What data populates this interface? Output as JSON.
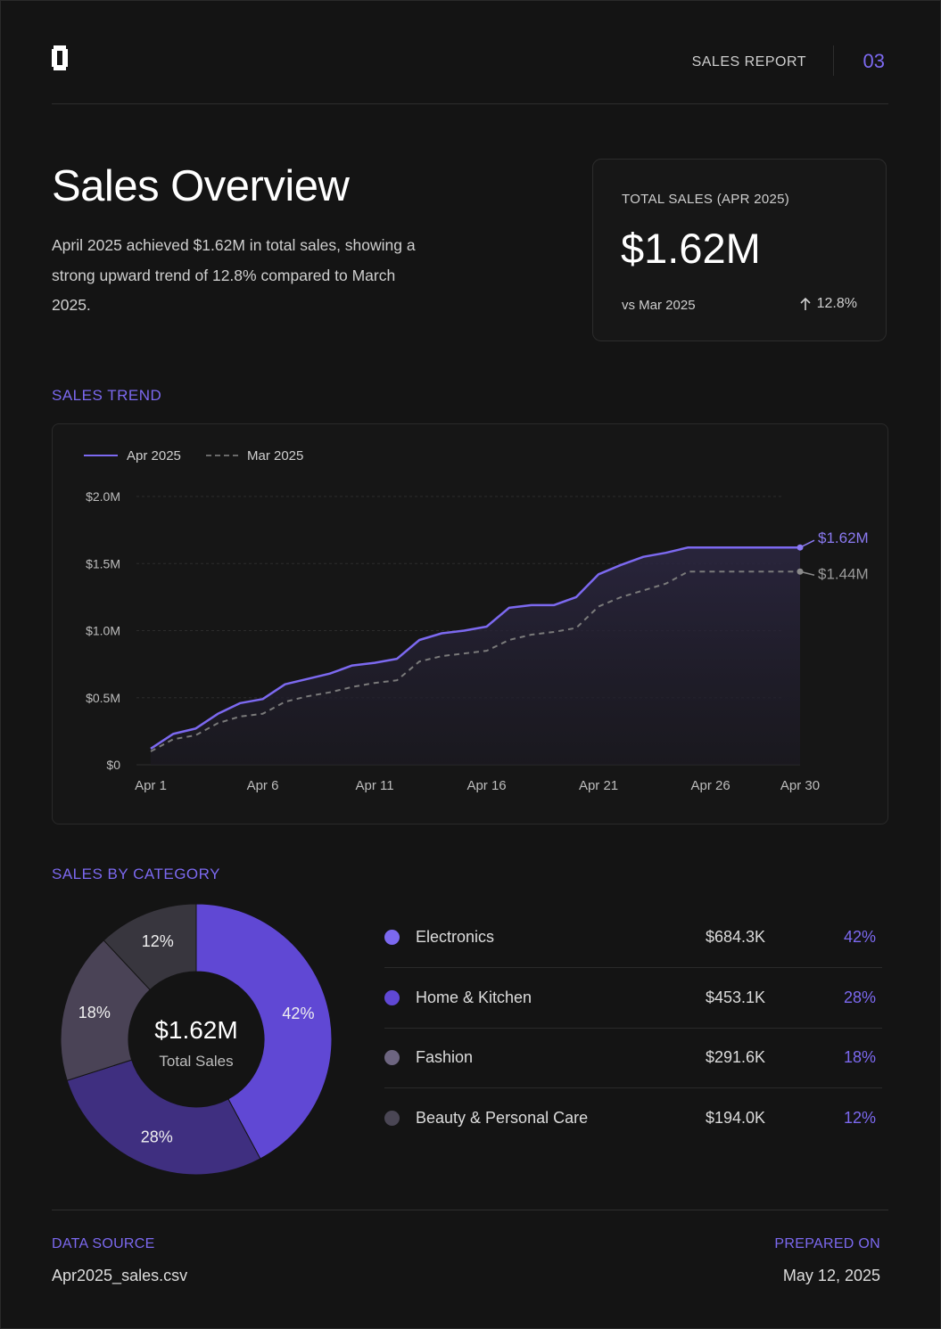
{
  "header": {
    "report_label": "SALES REPORT",
    "page_number": "03"
  },
  "overview": {
    "title": "Sales Overview",
    "description": "April 2025 achieved $1.62M in total sales, showing a strong upward trend of 12.8% compared to March 2025."
  },
  "kpi": {
    "label": "TOTAL SALES (APR 2025)",
    "value": "$1.62M",
    "comparison": "vs Mar 2025",
    "change": "12.8%",
    "change_icon": "arrow-up-icon"
  },
  "sections": {
    "trend_title": "SALES TREND",
    "category_title": "SALES BY CATEGORY"
  },
  "colors": {
    "accent": "#7c69f0",
    "background": "#141414",
    "apr_line": "#7c69f0",
    "mar_line": "#7a7a7a"
  },
  "chart_data": [
    {
      "type": "line",
      "x_ticks": [
        "Apr 1",
        "Apr 6",
        "Apr 11",
        "Apr 16",
        "Apr 21",
        "Apr 26",
        "Apr 30"
      ],
      "x_days": [
        1,
        6,
        11,
        16,
        21,
        26,
        30
      ],
      "x_range": [
        1,
        30
      ],
      "y_ticks": [
        "$0",
        "$0.5M",
        "$1.0M",
        "$1.5M",
        "$2.0M"
      ],
      "y_tick_values": [
        0,
        0.5,
        1.0,
        1.5,
        2.0
      ],
      "ylim": [
        0,
        2.0
      ],
      "y_unit": "$M",
      "grid": true,
      "legend_position": "top-left",
      "series": [
        {
          "name": "Apr 2025",
          "style": "solid",
          "color": "#7c69f0",
          "end_label": "$1.62M",
          "x": [
            1,
            2,
            3,
            4,
            5,
            6,
            7,
            8,
            9,
            10,
            11,
            12,
            13,
            14,
            15,
            16,
            17,
            18,
            19,
            20,
            21,
            22,
            23,
            24,
            25,
            26,
            27,
            28,
            29,
            30
          ],
          "values": [
            0.12,
            0.23,
            0.27,
            0.38,
            0.46,
            0.49,
            0.6,
            0.64,
            0.68,
            0.74,
            0.76,
            0.79,
            0.93,
            0.98,
            1.0,
            1.03,
            1.17,
            1.19,
            1.19,
            1.25,
            1.42,
            1.49,
            1.55,
            1.58,
            1.62,
            1.62,
            1.62,
            1.62,
            1.62,
            1.62
          ]
        },
        {
          "name": "Mar 2025",
          "style": "dashed",
          "color": "#7a7a7a",
          "end_label": "$1.44M",
          "x": [
            1,
            2,
            3,
            4,
            5,
            6,
            7,
            8,
            9,
            10,
            11,
            12,
            13,
            14,
            15,
            16,
            17,
            18,
            19,
            20,
            21,
            22,
            23,
            24,
            25,
            26,
            27,
            28,
            29,
            30
          ],
          "values": [
            0.1,
            0.19,
            0.22,
            0.31,
            0.36,
            0.38,
            0.47,
            0.51,
            0.54,
            0.58,
            0.61,
            0.63,
            0.77,
            0.81,
            0.83,
            0.85,
            0.93,
            0.97,
            0.99,
            1.02,
            1.18,
            1.25,
            1.3,
            1.35,
            1.44,
            1.44,
            1.44,
            1.44,
            1.44,
            1.44
          ]
        }
      ]
    },
    {
      "type": "pie",
      "center_value": "$1.62M",
      "center_label": "Total Sales",
      "categories": [
        "Electronics",
        "Home & Kitchen",
        "Fashion",
        "Beauty & Personal Care"
      ],
      "values": [
        684.3,
        453.1,
        291.6,
        194.0
      ],
      "value_labels": [
        "$684.3K",
        "$453.1K",
        "$291.6K",
        "$194.0K"
      ],
      "percentages": [
        42,
        28,
        18,
        12
      ],
      "percent_labels": [
        "42%",
        "28%",
        "18%",
        "12%"
      ],
      "colors": [
        "#6048d4",
        "#3f2f80",
        "#4a4356",
        "#38363e"
      ],
      "dot_colors": [
        "#7c69f0",
        "#6048d4",
        "#6d6580",
        "#4a4654"
      ]
    }
  ],
  "footer": {
    "source_label": "DATA SOURCE",
    "source_value": "Apr2025_sales.csv",
    "prepared_label": "PREPARED ON",
    "prepared_value": "May 12, 2025"
  }
}
